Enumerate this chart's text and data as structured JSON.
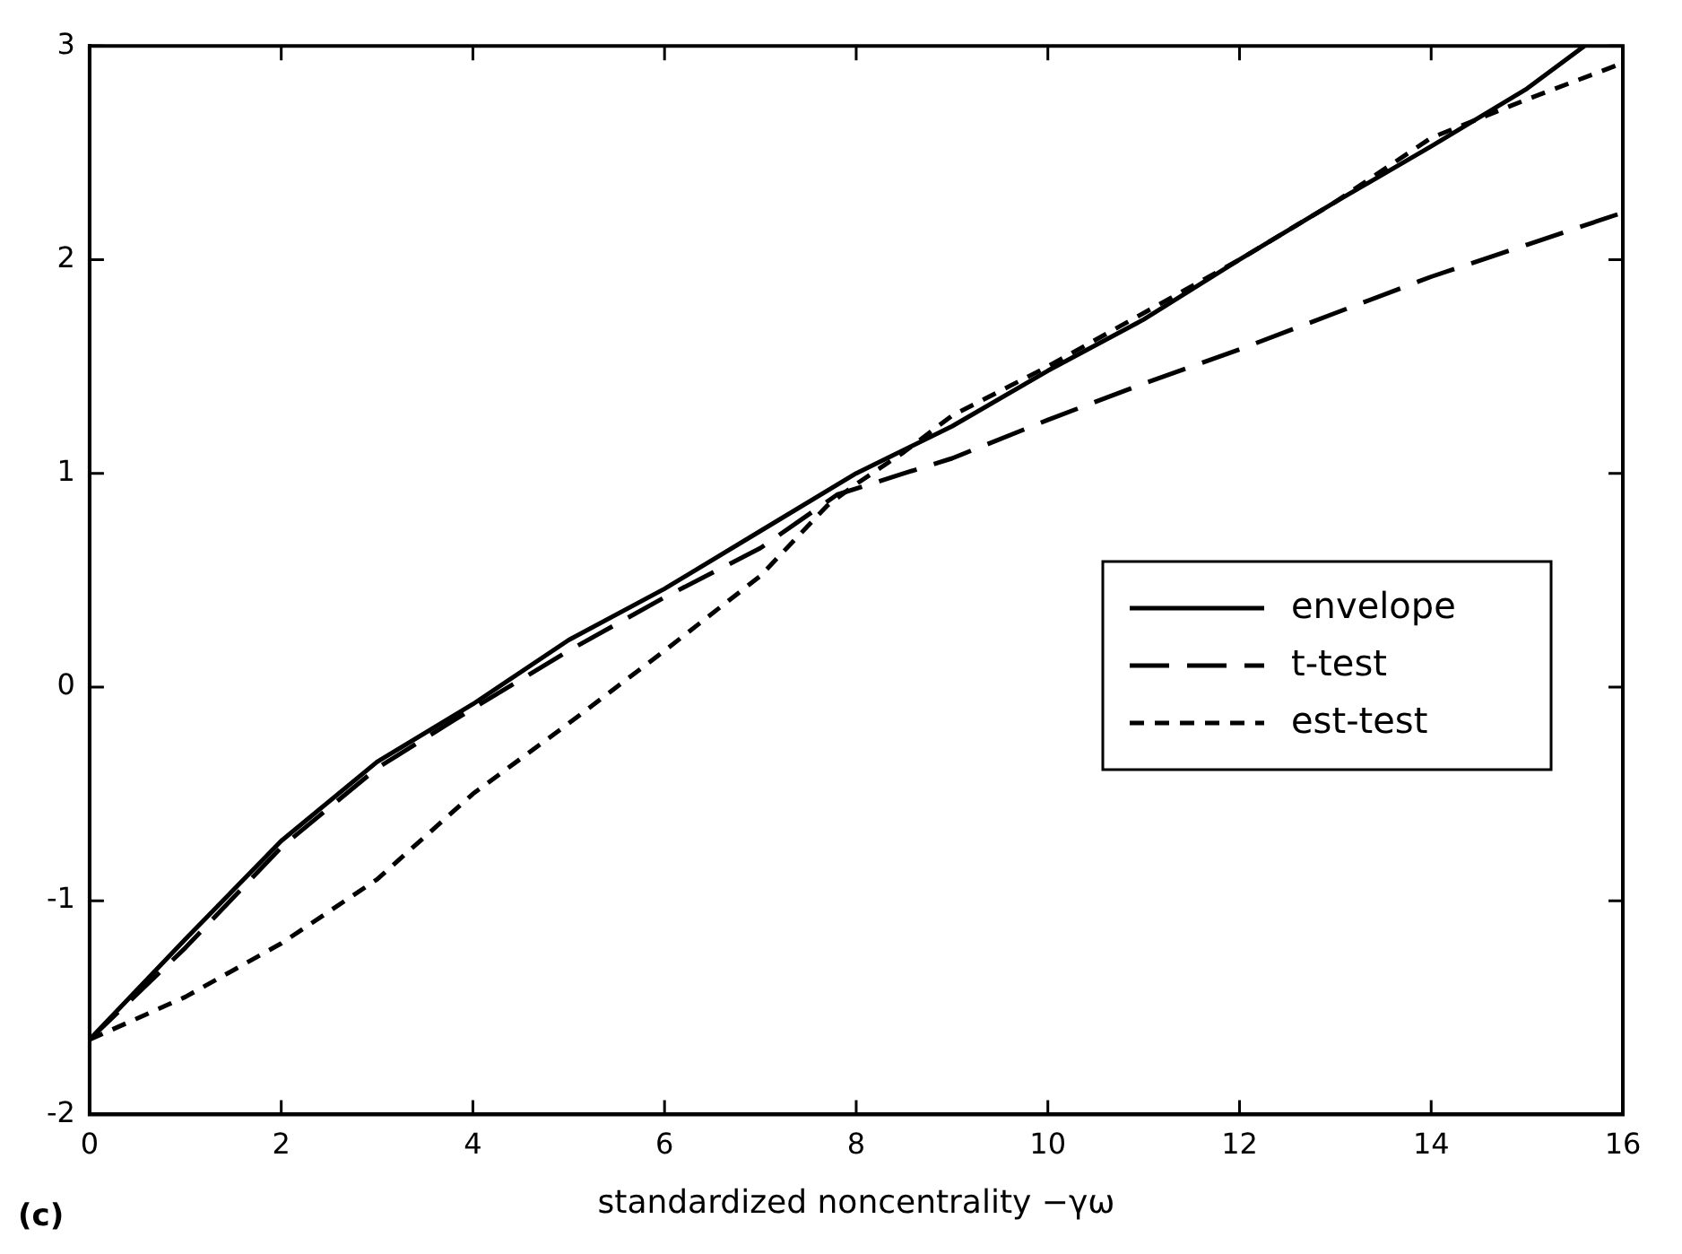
{
  "chart_data": {
    "type": "line",
    "xlabel": "standardized noncentrality −γω",
    "xlim": [
      0,
      16
    ],
    "xticks": [
      0,
      2,
      4,
      6,
      8,
      10,
      12,
      14,
      16
    ],
    "ylim": [
      -2,
      3
    ],
    "yticks": [
      -2,
      -1,
      0,
      1,
      2,
      3
    ],
    "grid": false,
    "legend": "right",
    "marker": "none",
    "annotations": [
      "(c)"
    ],
    "series": [
      {
        "name": "envelope",
        "color": "#000000",
        "line_style": "solid",
        "x": [
          0,
          1,
          2,
          3,
          4,
          5,
          6,
          7,
          8,
          9,
          10,
          11,
          12,
          13,
          14,
          15,
          15.6
        ],
        "values": [
          -1.65,
          -1.18,
          -0.72,
          -0.35,
          -0.08,
          0.22,
          0.46,
          0.73,
          1.0,
          1.22,
          1.48,
          1.72,
          2.0,
          2.27,
          2.53,
          2.8,
          3.0
        ]
      },
      {
        "name": "t-test",
        "color": "#000000",
        "line_style": "dashed",
        "x": [
          0,
          1,
          2,
          3,
          4,
          5,
          6,
          7,
          7.8,
          8.5,
          9,
          10,
          11,
          12,
          13,
          14,
          15,
          16
        ],
        "values": [
          -1.65,
          -1.22,
          -0.75,
          -0.38,
          -0.1,
          0.17,
          0.42,
          0.65,
          0.9,
          1.0,
          1.07,
          1.25,
          1.42,
          1.58,
          1.75,
          1.92,
          2.07,
          2.22
        ]
      },
      {
        "name": "est-test",
        "color": "#000000",
        "line_style": "dotted",
        "x": [
          0,
          1,
          2,
          3,
          4,
          5,
          6,
          7,
          7.7,
          8,
          8.5,
          9,
          10,
          11,
          12,
          13,
          14,
          15,
          16
        ],
        "values": [
          -1.65,
          -1.45,
          -1.2,
          -0.9,
          -0.5,
          -0.17,
          0.17,
          0.52,
          0.85,
          0.95,
          1.1,
          1.27,
          1.5,
          1.75,
          2.0,
          2.27,
          2.57,
          2.75,
          2.92
        ]
      }
    ]
  }
}
